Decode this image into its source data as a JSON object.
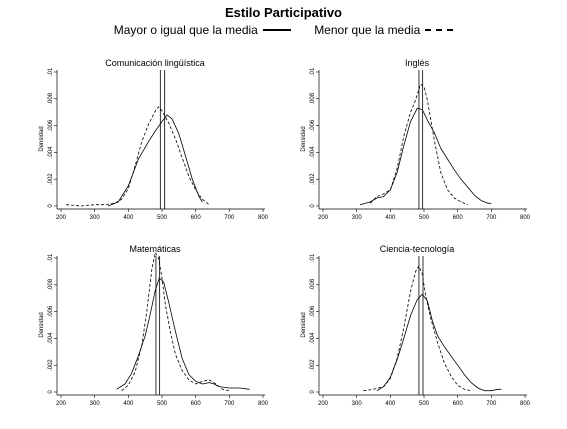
{
  "figure": {
    "title": "Estilo Participativo",
    "legend": [
      {
        "label": "Mayor o igual que la media",
        "style": "solid"
      },
      {
        "label": "Menor que la media",
        "style": "dashed"
      }
    ]
  },
  "chart_data": [
    {
      "type": "line",
      "title": "Comunicación lingüística",
      "xlabel": "",
      "ylabel": "Densidad",
      "xlim": [
        200,
        800
      ],
      "ylim": [
        0,
        0.01
      ],
      "xticks": [
        200,
        300,
        400,
        500,
        600,
        700,
        800
      ],
      "xtick_labels": [
        "200",
        "300",
        "400",
        "500",
        "600",
        "700",
        "800"
      ],
      "yticks": [
        0,
        0.002,
        0.004,
        0.006,
        0.008,
        0.01
      ],
      "ytick_labels": [
        "0",
        ".002",
        ".004",
        ".006",
        ".008",
        ".01"
      ],
      "grid": false,
      "vlines": [
        {
          "x": 508,
          "style": "solid"
        },
        {
          "x": 495,
          "style": "solid"
        }
      ],
      "series": [
        {
          "name": "Mayor o igual que la media",
          "style": "solid",
          "x": [
            340,
            370,
            400,
            430,
            460,
            480,
            500,
            515,
            530,
            550,
            570,
            590,
            610,
            620
          ],
          "y": [
            0.0,
            0.0003,
            0.0015,
            0.0035,
            0.0048,
            0.0056,
            0.0063,
            0.0068,
            0.0065,
            0.0054,
            0.0037,
            0.002,
            0.0007,
            0.0003
          ]
        },
        {
          "name": "Menor que la media",
          "style": "dashed",
          "x": [
            215,
            260,
            300,
            330,
            360,
            380,
            400,
            420,
            440,
            460,
            480,
            490,
            500,
            520,
            540,
            560,
            580,
            600,
            620,
            640
          ],
          "y": [
            0.0001,
            0.0,
            0.0001,
            0.0001,
            0.0002,
            0.0005,
            0.0013,
            0.003,
            0.0048,
            0.0061,
            0.0071,
            0.0074,
            0.0071,
            0.0062,
            0.005,
            0.0036,
            0.0022,
            0.0012,
            0.0005,
            0.0001
          ]
        }
      ]
    },
    {
      "type": "line",
      "title": "Inglés",
      "xlabel": "",
      "ylabel": "Densidad",
      "xlim": [
        200,
        800
      ],
      "ylim": [
        0,
        0.01
      ],
      "xticks": [
        200,
        300,
        400,
        500,
        600,
        700,
        800
      ],
      "xtick_labels": [
        "200",
        "300",
        "400",
        "500",
        "600",
        "700",
        "800"
      ],
      "yticks": [
        0,
        0.002,
        0.004,
        0.006,
        0.008,
        0.01
      ],
      "ytick_labels": [
        "0",
        ".002",
        ".004",
        ".006",
        ".008",
        ".01"
      ],
      "grid": false,
      "vlines": [
        {
          "x": 496,
          "style": "solid"
        },
        {
          "x": 485,
          "style": "solid"
        }
      ],
      "series": [
        {
          "name": "Mayor o igual que la media",
          "style": "solid",
          "x": [
            310,
            340,
            360,
            380,
            400,
            420,
            440,
            460,
            480,
            495,
            510,
            530,
            550,
            570,
            590,
            610,
            630,
            650,
            670,
            690,
            700
          ],
          "y": [
            0.0001,
            0.0003,
            0.0006,
            0.0007,
            0.0012,
            0.0025,
            0.0045,
            0.0063,
            0.0073,
            0.0072,
            0.0064,
            0.0055,
            0.0043,
            0.0035,
            0.0027,
            0.002,
            0.0014,
            0.0008,
            0.0004,
            0.0002,
            0.0002
          ]
        },
        {
          "name": "Menor que la media",
          "style": "dashed",
          "x": [
            340,
            360,
            380,
            400,
            420,
            440,
            460,
            475,
            490,
            500,
            510,
            530,
            550,
            570,
            590,
            610,
            630
          ],
          "y": [
            0.0002,
            0.0007,
            0.0009,
            0.0012,
            0.0028,
            0.0052,
            0.007,
            0.0079,
            0.0091,
            0.0089,
            0.0079,
            0.005,
            0.0025,
            0.0012,
            0.0006,
            0.0003,
            0.0001
          ]
        }
      ]
    },
    {
      "type": "line",
      "title": "Matemáticas",
      "xlabel": "",
      "ylabel": "Densidad",
      "xlim": [
        200,
        800
      ],
      "ylim": [
        0,
        0.01
      ],
      "xticks": [
        200,
        300,
        400,
        500,
        600,
        700,
        800
      ],
      "xtick_labels": [
        "200",
        "300",
        "400",
        "500",
        "600",
        "700",
        "800"
      ],
      "yticks": [
        0,
        0.002,
        0.004,
        0.006,
        0.008,
        0.01
      ],
      "ytick_labels": [
        "0",
        ".002",
        ".004",
        ".006",
        ".008",
        ".01"
      ],
      "grid": false,
      "vlines": [
        {
          "x": 493,
          "style": "solid"
        },
        {
          "x": 482,
          "style": "solid"
        }
      ],
      "series": [
        {
          "name": "Mayor o igual que la media",
          "style": "solid",
          "x": [
            365,
            390,
            410,
            430,
            450,
            465,
            480,
            492,
            505,
            520,
            540,
            560,
            580,
            600,
            620,
            640,
            655,
            670,
            700,
            730,
            760
          ],
          "y": [
            0.0002,
            0.0006,
            0.0014,
            0.0027,
            0.0042,
            0.0058,
            0.0076,
            0.0085,
            0.0082,
            0.0067,
            0.0045,
            0.0025,
            0.0013,
            0.0008,
            0.0006,
            0.0007,
            0.0006,
            0.0004,
            0.0003,
            0.0003,
            0.0002
          ]
        },
        {
          "name": "Menor que la media",
          "style": "dashed",
          "x": [
            380,
            400,
            420,
            440,
            455,
            470,
            480,
            490,
            500,
            510,
            525,
            540,
            560,
            580,
            600,
            620,
            640,
            660,
            680,
            700
          ],
          "y": [
            0.0001,
            0.0005,
            0.0015,
            0.0035,
            0.006,
            0.0092,
            0.0104,
            0.01,
            0.0085,
            0.0065,
            0.0045,
            0.0028,
            0.0016,
            0.0009,
            0.0006,
            0.0008,
            0.0009,
            0.0006,
            0.0002,
            0.0001
          ]
        }
      ]
    },
    {
      "type": "line",
      "title": "Ciencia-tecnología",
      "xlabel": "",
      "ylabel": "Densidad",
      "xlim": [
        200,
        800
      ],
      "ylim": [
        0,
        0.01
      ],
      "xticks": [
        200,
        300,
        400,
        500,
        600,
        700,
        800
      ],
      "xtick_labels": [
        "200",
        "300",
        "400",
        "500",
        "600",
        "700",
        "800"
      ],
      "yticks": [
        0,
        0.002,
        0.004,
        0.006,
        0.008,
        0.01
      ],
      "ytick_labels": [
        "0",
        ".002",
        ".004",
        ".006",
        ".008",
        ".01"
      ],
      "grid": false,
      "vlines": [
        {
          "x": 497,
          "style": "solid"
        },
        {
          "x": 485,
          "style": "solid"
        }
      ],
      "series": [
        {
          "name": "Mayor o igual que la media",
          "style": "solid",
          "x": [
            360,
            380,
            400,
            420,
            440,
            460,
            480,
            495,
            510,
            525,
            540,
            560,
            580,
            600,
            620,
            640,
            660,
            680,
            700,
            720,
            730
          ],
          "y": [
            0.0001,
            0.0004,
            0.0011,
            0.0024,
            0.004,
            0.0057,
            0.0069,
            0.0073,
            0.0068,
            0.0053,
            0.0042,
            0.0034,
            0.0027,
            0.002,
            0.0013,
            0.0007,
            0.0003,
            0.0001,
            0.0001,
            0.0002,
            0.0002
          ]
        },
        {
          "name": "Menor que la media",
          "style": "dashed",
          "x": [
            320,
            350,
            380,
            400,
            420,
            440,
            460,
            475,
            485,
            495,
            505,
            520,
            540,
            560,
            580,
            600,
            620,
            640
          ],
          "y": [
            0.0001,
            0.0002,
            0.0004,
            0.001,
            0.0025,
            0.0048,
            0.0075,
            0.009,
            0.0094,
            0.0088,
            0.0072,
            0.0055,
            0.0037,
            0.0022,
            0.0012,
            0.0005,
            0.0002,
            0.0001
          ]
        }
      ]
    }
  ]
}
